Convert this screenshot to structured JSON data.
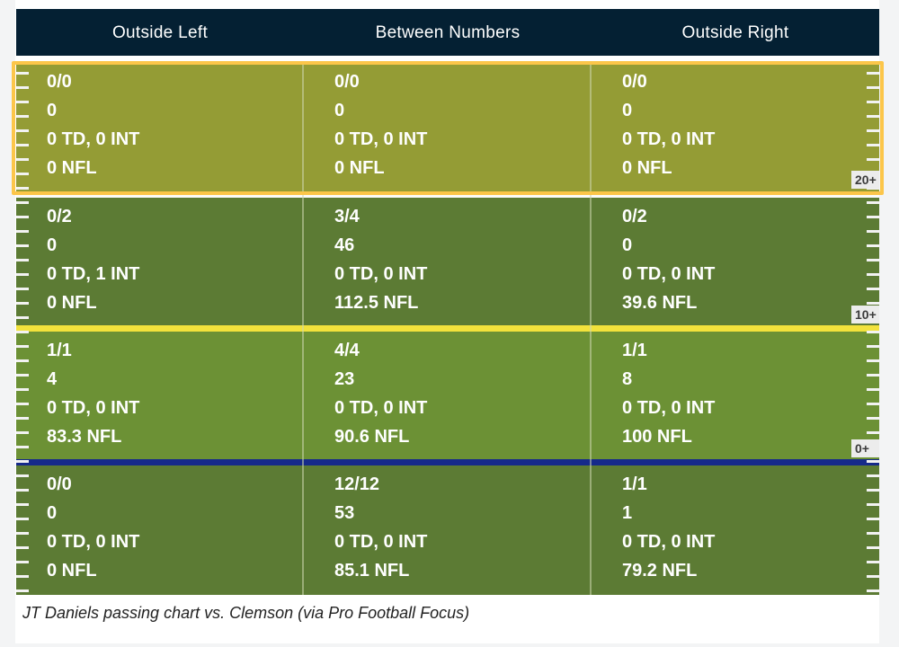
{
  "columns": [
    "Outside Left",
    "Between Numbers",
    "Outside Right"
  ],
  "chart_data": {
    "type": "table",
    "columns": [
      "Outside Left",
      "Between Numbers",
      "Outside Right"
    ],
    "rows": [
      {
        "zone": "20+",
        "color": "#949c35",
        "cells": [
          [
            "0/0",
            "0",
            "0 TD, 0 INT",
            "0 NFL"
          ],
          [
            "0/0",
            "0",
            "0 TD, 0 INT",
            "0 NFL"
          ],
          [
            "0/0",
            "0",
            "0 TD, 0 INT",
            "0 NFL"
          ]
        ]
      },
      {
        "zone": "10+",
        "color": "#5c7b34",
        "cells": [
          [
            "0/2",
            "0",
            "0 TD, 1 INT",
            "0 NFL"
          ],
          [
            "3/4",
            "46",
            "0 TD, 0 INT",
            "112.5 NFL"
          ],
          [
            "0/2",
            "0",
            "0 TD, 0 INT",
            "39.6 NFL"
          ]
        ]
      },
      {
        "zone": "0+",
        "color": "#6c9135",
        "cells": [
          [
            "1/1",
            "4",
            "0 TD, 0 INT",
            "83.3 NFL"
          ],
          [
            "4/4",
            "23",
            "0 TD, 0 INT",
            "90.6 NFL"
          ],
          [
            "1/1",
            "8",
            "0 TD, 0 INT",
            "100 NFL"
          ]
        ]
      },
      {
        "zone": "",
        "color": "#5c7b34",
        "cells": [
          [
            "0/0",
            "0",
            "0 TD, 0 INT",
            "0 NFL"
          ],
          [
            "12/12",
            "53",
            "0 TD, 0 INT",
            "85.1 NFL"
          ],
          [
            "1/1",
            "1",
            "0 TD, 0 INT",
            "79.2 NFL"
          ]
        ]
      }
    ]
  },
  "caption": "JT Daniels passing chart vs. Clemson (via Pro Football Focus)",
  "colors": {
    "header_bg": "#042033",
    "highlight_border": "#fcc64a",
    "ten_yard_line": "#f2e23c",
    "line_of_scrimmage": "#162a8a"
  }
}
